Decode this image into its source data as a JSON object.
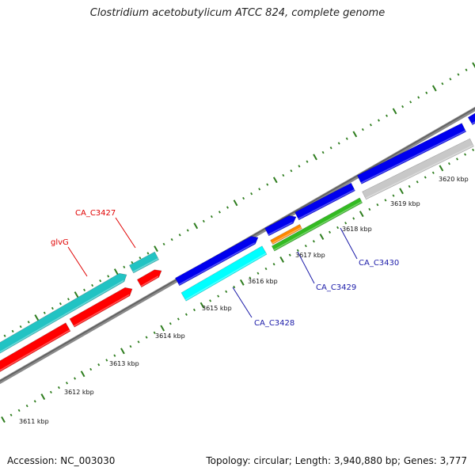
{
  "title": "Clostridium acetobutylicum ATCC 824, complete genome",
  "footer": {
    "accession": "Accession: NC_003030",
    "summary": "Topology: circular; Length: 3,940,880 bp; Genes: 3,777"
  },
  "colors": {
    "backbone": "#7a7a7a",
    "tick": "#2e7d1e",
    "label_red": "#e00000",
    "label_blue": "#1a1aa8",
    "cyan_dark": "#22c3c3",
    "red": "#ff0000",
    "blue": "#0000ee",
    "cyan": "#00ffff",
    "orange": "#ff8800",
    "green": "#33bb22",
    "gray": "#c8c8c8"
  },
  "kbp_labels": [
    "3611 kbp",
    "3612 kbp",
    "3613 kbp",
    "3614 kbp",
    "3615 kbp",
    "3616 kbp",
    "3617 kbp",
    "3618 kbp",
    "3619 kbp",
    "3620 kbp"
  ],
  "gene_labels": {
    "glvG": "glvG",
    "CA_C3427": "CA_C3427",
    "CA_C3428": "CA_C3428",
    "CA_C3429": "CA_C3429",
    "CA_C3430": "CA_C3430"
  }
}
